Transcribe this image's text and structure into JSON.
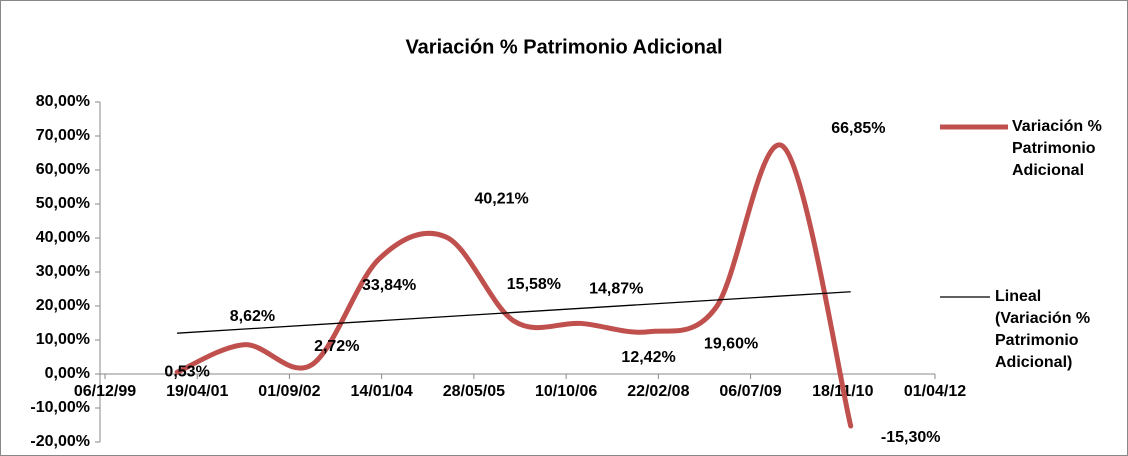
{
  "chart_data": {
    "type": "line",
    "title": "Variación % Patrimonio Adicional",
    "x": [
      "2000-12-31",
      "2001-12-31",
      "2002-12-31",
      "2003-12-31",
      "2004-12-31",
      "2005-12-31",
      "2006-12-31",
      "2007-12-31",
      "2008-12-31",
      "2009-12-31",
      "2010-12-31"
    ],
    "series": [
      {
        "name": "Variación % Patrimonio Adicional",
        "color": "#c0504d",
        "values": [
          0.53,
          8.62,
          2.72,
          33.84,
          40.21,
          15.58,
          14.87,
          12.42,
          19.6,
          66.85,
          -15.3
        ],
        "value_labels": [
          "0,53%",
          "8,62%",
          "2,72%",
          "33,84%",
          "40,21%",
          "15,58%",
          "14,87%",
          "12,42%",
          "19,60%",
          "66,85%",
          "-15,30%"
        ]
      },
      {
        "name": "Lineal (Variación % Patrimonio Adicional)",
        "color": "#000000",
        "x": [
          "2000-12-31",
          "2010-12-31"
        ],
        "values": [
          12.0,
          24.2
        ]
      }
    ],
    "xlim": [
      "1999-12-06",
      "2012-04-01"
    ],
    "xticks": [
      {
        "value": "1999-12-06",
        "label": "06/12/99"
      },
      {
        "value": "2001-04-19",
        "label": "19/04/01"
      },
      {
        "value": "2002-09-01",
        "label": "01/09/02"
      },
      {
        "value": "2004-01-14",
        "label": "14/01/04"
      },
      {
        "value": "2005-05-28",
        "label": "28/05/05"
      },
      {
        "value": "2006-10-10",
        "label": "10/10/06"
      },
      {
        "value": "2008-02-22",
        "label": "22/02/08"
      },
      {
        "value": "2009-07-06",
        "label": "06/07/09"
      },
      {
        "value": "2010-11-18",
        "label": "18/11/10"
      },
      {
        "value": "2012-04-01",
        "label": "01/04/12"
      }
    ],
    "ylim": [
      -20,
      80
    ],
    "yticks": [
      {
        "value": -20,
        "label": "-20,00%"
      },
      {
        "value": -10,
        "label": "-10,00%"
      },
      {
        "value": 0,
        "label": "0,00%"
      },
      {
        "value": 10,
        "label": "10,00%"
      },
      {
        "value": 20,
        "label": "20,00%"
      },
      {
        "value": 30,
        "label": "30,00%"
      },
      {
        "value": 40,
        "label": "40,00%"
      },
      {
        "value": 50,
        "label": "50,00%"
      },
      {
        "value": 60,
        "label": "60,00%"
      },
      {
        "value": 70,
        "label": "70,00%"
      },
      {
        "value": 80,
        "label": "80,00%"
      }
    ],
    "legend": "right"
  }
}
